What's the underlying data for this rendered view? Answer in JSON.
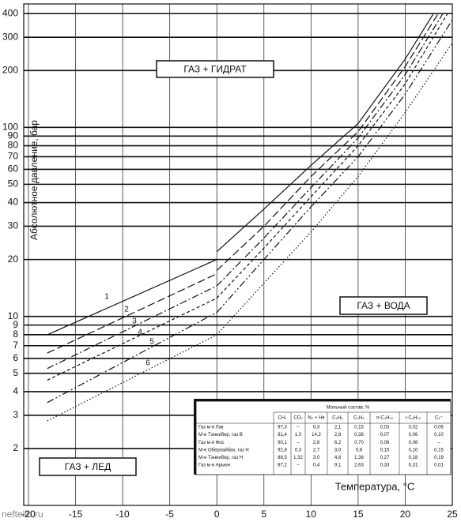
{
  "chart_data": {
    "type": "line",
    "y_label": "Абсолютное давление, бар",
    "x_label": "Температура, °C",
    "watermark": "neftelib.ru",
    "ylog": true,
    "grid": true,
    "xlim": [
      -20.5,
      25
    ],
    "xticks": [
      -20,
      -15,
      -10,
      -5,
      0,
      5,
      10,
      15,
      20,
      25
    ],
    "ylim": [
      1,
      450
    ],
    "yticks": [
      2,
      3,
      4,
      5,
      6,
      7,
      8,
      9,
      10,
      20,
      30,
      40,
      50,
      60,
      70,
      80,
      90,
      100,
      200,
      300,
      400
    ],
    "regions": [
      "ГАЗ + ГИДРАТ",
      "ГАЗ + ВОДА",
      "ГАЗ + ЛЕД"
    ],
    "series": [
      {
        "name": "1",
        "color": "#111",
        "dash": "",
        "x": [
          -18,
          0,
          null,
          0,
          5,
          10,
          15,
          20,
          23
        ],
        "values": [
          8,
          20,
          null,
          22,
          37,
          63,
          105,
          230,
          400
        ]
      },
      {
        "name": "2",
        "color": "#111",
        "dash": "10 4",
        "x": [
          -18,
          0,
          null,
          0,
          5,
          10,
          15,
          20,
          23.5
        ],
        "values": [
          6.4,
          16.8,
          null,
          17.5,
          30,
          55,
          95,
          210,
          400
        ]
      },
      {
        "name": "3",
        "color": "#111",
        "dash": "9 3 2 3",
        "x": [
          -18,
          0,
          null,
          0,
          5,
          10,
          15,
          20,
          24
        ],
        "values": [
          5.3,
          14.5,
          null,
          14.5,
          26,
          48,
          88,
          190,
          400
        ]
      },
      {
        "name": "4",
        "color": "#111",
        "dash": "4 3",
        "x": [
          -18,
          0,
          null,
          0,
          5,
          10,
          15,
          20,
          24.5
        ],
        "values": [
          4.6,
          12.5,
          null,
          12.5,
          23,
          43,
          80,
          170,
          400
        ]
      },
      {
        "name": "5",
        "color": "#111",
        "dash": "9 3 2 3 2 3",
        "x": [
          -18,
          0,
          null,
          0,
          5,
          10,
          15,
          20,
          25
        ],
        "values": [
          3.5,
          10.5,
          null,
          10.5,
          20,
          38,
          70,
          150,
          370
        ]
      },
      {
        "name": "6",
        "color": "#111",
        "dash": "1.5 2.5",
        "x": [
          -18,
          0,
          null,
          0,
          5,
          10,
          15,
          20,
          25
        ],
        "values": [
          2.8,
          8,
          null,
          8,
          15,
          28,
          55,
          120,
          280
        ]
      }
    ],
    "table": {
      "title": "Мольный состав, %",
      "columns": [
        "CH₄",
        "CO₂",
        "N₂ + He",
        "C₂H₆",
        "C₃H₈",
        "n-C₄H₁₀",
        "i-C₄H₁₀",
        "C₅⁺"
      ],
      "rows": [
        [
          "Газ м-я Лак",
          "97,3",
          "–",
          "0,3",
          "2,1",
          "0,15",
          "0,03",
          "0,02",
          "0,06"
        ],
        [
          "М-е Тэннибер, газ В",
          "81,4",
          "1,0",
          "14,2",
          "2,8",
          "0,38",
          "0,07",
          "0,06",
          "0,10"
        ],
        [
          "Газ м-я Фос",
          "90,1",
          "–",
          "2,8",
          "6,2",
          "0,70",
          "0,06",
          "0,06",
          "–"
        ],
        [
          "М-е Оберлайбах, газ Н",
          "92,8",
          "0,3",
          "2,7",
          "3,0",
          "0,8",
          "0,15",
          "0,10",
          "0,15"
        ],
        [
          "М-е Тэннибер, газ Н",
          "88,5",
          "1,32",
          "3,0",
          "4,8",
          "1,38",
          "0,27",
          "0,18",
          "0,19"
        ],
        [
          "Газ м-я Арьюн",
          "87,2",
          "–",
          "0,4",
          "9,1",
          "2,63",
          "0,33",
          "0,31",
          "0,01"
        ]
      ]
    }
  }
}
